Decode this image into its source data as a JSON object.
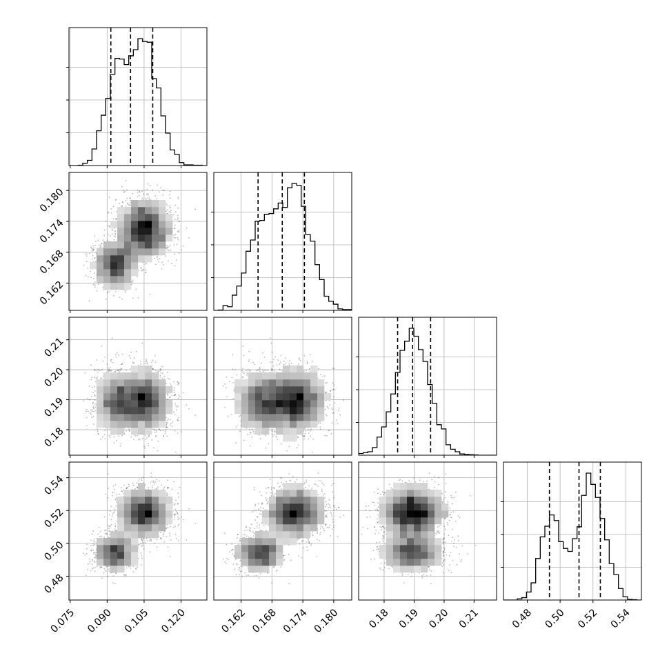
{
  "chart_data": {
    "type": "corner",
    "n_params": 4,
    "params": [
      {
        "ticks": [
          0.075,
          0.09,
          0.105,
          0.12
        ],
        "tick_labels": [
          "0.075",
          "0.090",
          "0.105",
          "0.120"
        ],
        "range": [
          0.0745,
          0.1305
        ],
        "quantiles": [
          0.0915,
          0.0995,
          0.1085
        ],
        "modes": [
          {
            "mean": 0.093,
            "sd": 0.0045,
            "weight": 0.35
          },
          {
            "mean": 0.105,
            "sd": 0.0055,
            "weight": 0.65
          }
        ]
      },
      {
        "ticks": [
          0.162,
          0.168,
          0.174,
          0.18
        ],
        "tick_labels": [
          "0.162",
          "0.168",
          "0.174",
          "0.180"
        ],
        "range": [
          0.1567,
          0.1835
        ],
        "quantiles": [
          0.1653,
          0.17,
          0.1743
        ],
        "modes": [
          {
            "mean": 0.1655,
            "sd": 0.0025,
            "weight": 0.35
          },
          {
            "mean": 0.1725,
            "sd": 0.003,
            "weight": 0.65
          }
        ]
      },
      {
        "ticks": [
          0.18,
          0.19,
          0.2,
          0.21
        ],
        "tick_labels": [
          "0.18",
          "0.19",
          "0.20",
          "0.21"
        ],
        "range": [
          0.1715,
          0.2175
        ],
        "quantiles": [
          0.1845,
          0.1895,
          0.1955
        ],
        "modes": [
          {
            "mean": 0.1895,
            "sd": 0.0055,
            "weight": 1.0
          }
        ]
      },
      {
        "ticks": [
          0.48,
          0.5,
          0.52,
          0.54
        ],
        "tick_labels": [
          "0.48",
          "0.50",
          "0.52",
          "0.54"
        ],
        "range": [
          0.4655,
          0.5495
        ],
        "quantiles": [
          0.4935,
          0.5115,
          0.5245
        ],
        "modes": [
          {
            "mean": 0.494,
            "sd": 0.006,
            "weight": 0.35
          },
          {
            "mean": 0.519,
            "sd": 0.008,
            "weight": 0.65
          }
        ]
      }
    ],
    "quantile_style": "dashed",
    "grid": true
  }
}
